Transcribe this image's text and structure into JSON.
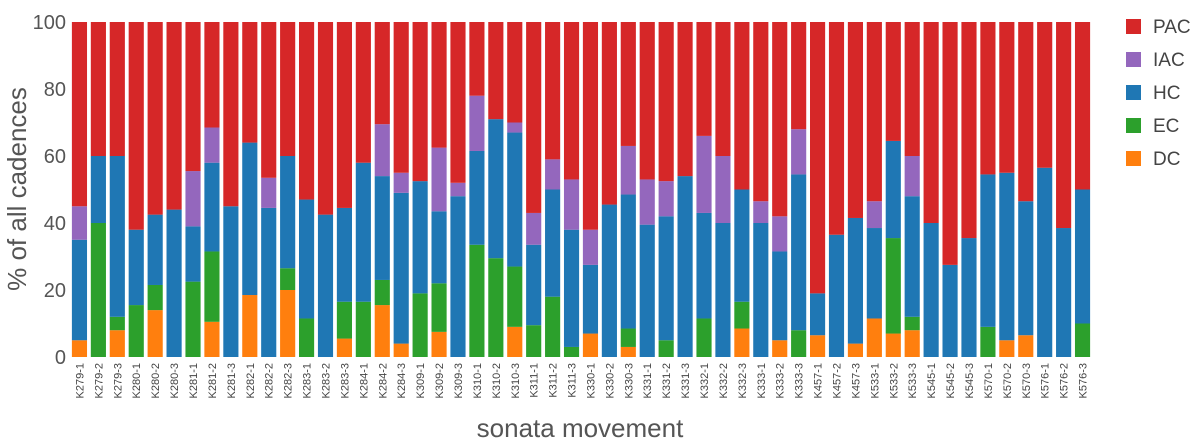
{
  "chart_data": {
    "type": "bar",
    "stacked": true,
    "xlabel": "sonata movement",
    "ylabel": "% of all cadences",
    "ylim": [
      0,
      100
    ],
    "yticks": [
      0,
      20,
      40,
      60,
      80,
      100
    ],
    "grid": false,
    "legend_position": "right",
    "categories": [
      "K279-1",
      "K279-2",
      "K279-3",
      "K280-1",
      "K280-2",
      "K280-3",
      "K281-1",
      "K281-2",
      "K281-3",
      "K282-1",
      "K282-2",
      "K282-3",
      "K283-1",
      "K283-2",
      "K283-3",
      "K284-1",
      "K284-2",
      "K284-3",
      "K309-1",
      "K309-2",
      "K309-3",
      "K310-1",
      "K310-2",
      "K310-3",
      "K311-1",
      "K311-2",
      "K311-3",
      "K330-1",
      "K330-2",
      "K330-3",
      "K331-1",
      "K331-2",
      "K331-3",
      "K332-1",
      "K332-2",
      "K332-3",
      "K333-1",
      "K333-2",
      "K333-3",
      "K457-1",
      "K457-2",
      "K457-3",
      "K533-1",
      "K533-2",
      "K533-3",
      "K545-1",
      "K545-2",
      "K545-3",
      "K570-1",
      "K570-2",
      "K570-3",
      "K576-1",
      "K576-2",
      "K576-3"
    ],
    "series": [
      {
        "name": "DC",
        "color": "#ff7f0e",
        "values": [
          5,
          0,
          8,
          0,
          14,
          0,
          0,
          10.5,
          0,
          18.5,
          0,
          20,
          0,
          0,
          5.5,
          0,
          15.5,
          4,
          0,
          7.5,
          0,
          0,
          0,
          9,
          0,
          0,
          0,
          7,
          0,
          3,
          0,
          0,
          0,
          0,
          0,
          8.5,
          0,
          5,
          0,
          6.5,
          0,
          4,
          11.5,
          7,
          8,
          0,
          0,
          0,
          0,
          5,
          6.5,
          0,
          0,
          0
        ]
      },
      {
        "name": "EC",
        "color": "#2ca02c",
        "values": [
          0,
          40,
          4,
          15.5,
          7.5,
          0,
          22.5,
          21,
          0,
          0,
          0,
          6.5,
          11.5,
          0,
          11,
          16.5,
          7.5,
          0,
          19,
          14.5,
          0,
          33.5,
          29.5,
          18,
          9.5,
          18,
          3,
          0,
          0,
          5.5,
          0,
          5,
          0,
          11.5,
          0,
          8,
          0,
          0,
          8,
          0,
          0,
          0,
          0,
          28.5,
          4,
          0,
          0,
          0,
          9,
          0,
          0,
          0,
          0,
          10
        ]
      },
      {
        "name": "HC",
        "color": "#1f77b4",
        "values": [
          30,
          20,
          48,
          22.5,
          21,
          44,
          16.5,
          26.5,
          45,
          45.5,
          44.5,
          33.5,
          35.5,
          42.5,
          28,
          41.5,
          31,
          45,
          33.5,
          21.5,
          48,
          28,
          41.5,
          40,
          24,
          32,
          35,
          20.5,
          45.5,
          40,
          39.5,
          37,
          54,
          31.5,
          40,
          33.5,
          40,
          26.5,
          46.5,
          12.5,
          36.5,
          37.5,
          27,
          29,
          36,
          40,
          27.5,
          35.5,
          45.5,
          50,
          40,
          56.5,
          38.5,
          40
        ]
      },
      {
        "name": "IAC",
        "color": "#9467bd",
        "values": [
          10,
          0,
          0,
          0,
          0,
          0,
          16.5,
          10.5,
          0,
          0,
          9,
          0,
          0,
          0,
          0,
          0,
          15.5,
          6,
          0,
          19,
          4,
          16.5,
          0,
          3,
          9.5,
          9,
          15,
          10.5,
          0,
          14.5,
          13.5,
          10.5,
          0,
          23,
          20,
          0,
          6.5,
          10.5,
          13.5,
          0,
          0,
          0,
          8,
          0,
          12,
          0,
          0,
          0,
          0,
          0,
          0,
          0,
          0,
          0
        ]
      },
      {
        "name": "PAC",
        "color": "#d62728",
        "values": [
          55,
          40,
          40,
          62,
          57.5,
          56,
          44.5,
          31.5,
          55,
          36,
          46.5,
          40,
          53,
          57.5,
          55.5,
          42,
          30.5,
          45,
          47.5,
          37.5,
          48,
          22,
          29,
          30,
          57,
          41,
          47,
          62,
          54.5,
          37,
          47,
          47.5,
          46,
          34,
          40,
          50,
          53.5,
          58,
          32,
          81,
          63.5,
          58.5,
          53.5,
          35.5,
          40,
          60,
          72.5,
          64.5,
          45.5,
          45,
          53.5,
          43.5,
          61.5,
          50
        ]
      }
    ],
    "legend_order": [
      "PAC",
      "IAC",
      "HC",
      "EC",
      "DC"
    ]
  }
}
